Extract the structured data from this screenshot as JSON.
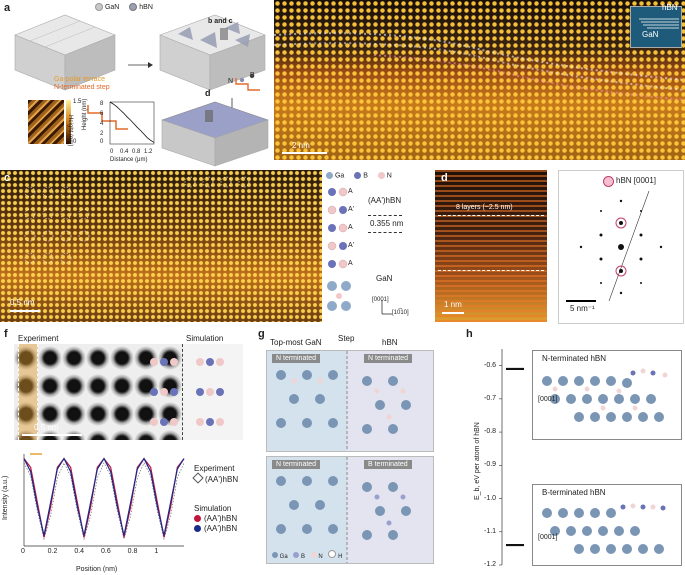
{
  "panel_labels": [
    "a",
    "b",
    "c",
    "d",
    "e",
    "f",
    "g",
    "h"
  ],
  "panel_a": {
    "legend": [
      {
        "label": "GaN",
        "color": "#c8c8c8"
      },
      {
        "label": "hBN",
        "color": "#9aa0b4"
      }
    ],
    "arrow_label_bc": "b and c",
    "arrow_label_d": "d",
    "terrace_label": "Ga-polar terrace",
    "step_label": "N-terminated step",
    "n_label": "N",
    "b_label": "B",
    "afm_scale_top": "1.5",
    "afm_scale_bottom": "0",
    "afm_scale_label": "Height (nm)",
    "profile": {
      "ylabel": "Height (nm)",
      "xlabel": "Distance (μm)",
      "yticks": [
        "0",
        "2",
        "4",
        "6",
        "8"
      ],
      "xticks": [
        "0",
        "0.4",
        "0.8",
        "1.2"
      ]
    }
  },
  "panel_b": {
    "inset_hbn": "hBN",
    "inset_gan": "GaN",
    "scale_bar": "2 nm"
  },
  "panel_c": {
    "legend": [
      "Ga",
      "B",
      "N"
    ],
    "stack_label": "(AA')hBN",
    "layer_letters": [
      "A",
      "A'",
      "A",
      "A'",
      "A"
    ],
    "spacing": "0.355 nm",
    "gan_label": "GaN",
    "axis_vertical": "[0001]",
    "axis_horizontal": "[10̅10]",
    "scale_bar": "0.5 nm"
  },
  "panel_d": {
    "layers_label": "8 layers (~2.5 nm)",
    "scale_bar": "1 nm"
  },
  "panel_e": {
    "label": "hBN [0001]",
    "scale_bar": "5 nm⁻¹"
  },
  "panel_f": {
    "experiment": "Experiment",
    "simulation": "Simulation",
    "scale_bar": "0.5 nm",
    "legend_experiment_title": "Experiment",
    "legend_experiment_item": "(AA')hBN",
    "legend_sim_title": "Simulation",
    "legend_sim_items": [
      {
        "label": "(AA')hBN",
        "color": "#c0143c"
      },
      {
        "label": "(AA')hBN",
        "color": "#1a2a8a"
      }
    ]
  },
  "panel_g": {
    "col_gan": "Top-most GaN",
    "col_step": "Step",
    "col_hbn": "hBN",
    "top_left": "N terminated",
    "top_right": "N terminated",
    "bot_left": "N terminated",
    "bot_right": "B terminated",
    "legend": [
      "Ga",
      "B",
      "N",
      "H"
    ]
  },
  "panel_h": {
    "top_label": "N-terminated hBN",
    "bottom_label": "B-terminated hBN",
    "axis_label": "[0001]",
    "ylabel": "E_b, eV per atom of hBN",
    "ytick_labels": [
      "-0.6",
      "-0.7",
      "-0.8",
      "-0.9",
      "-1.0",
      "-1.1",
      "-1.2"
    ]
  },
  "chart_data": [
    {
      "type": "line",
      "xlabel": "Distance (μm)",
      "ylabel": "Height (nm)",
      "x": [
        0,
        0.1,
        0.2,
        0.3,
        0.4,
        0.5,
        0.6,
        0.7,
        0.8,
        0.9,
        1.0,
        1.1,
        1.2,
        1.3
      ],
      "series": [
        {
          "values": [
            8,
            7.6,
            7.1,
            6.5,
            5.9,
            5.2,
            4.6,
            3.9,
            3.2,
            2.6,
            1.9,
            1.2,
            0.7,
            0.3
          ]
        }
      ],
      "xlim": [
        0,
        1.3
      ],
      "ylim": [
        0,
        8
      ]
    },
    {
      "type": "line",
      "xlabel": "Position (nm)",
      "ylabel": "Intensity (a.u.)",
      "xlim": [
        0,
        1.2
      ],
      "x": [
        0,
        0.05,
        0.1,
        0.15,
        0.2,
        0.25,
        0.3,
        0.35,
        0.4,
        0.45,
        0.5,
        0.55,
        0.6,
        0.65,
        0.7,
        0.75,
        0.8,
        0.85,
        0.9,
        0.95,
        1.0,
        1.05,
        1.1,
        1.15,
        1.2
      ],
      "series": [
        {
          "name": "(AA')hBN",
          "color": "#555555",
          "values": [
            0.95,
            0.8,
            0.4,
            0.08,
            0.35,
            0.78,
            0.95,
            0.8,
            0.4,
            0.08,
            0.35,
            0.78,
            0.95,
            0.8,
            0.4,
            0.08,
            0.35,
            0.78,
            0.95,
            0.8,
            0.4,
            0.08,
            0.35,
            0.78,
            0.95
          ]
        },
        {
          "name": "(AA')hBN",
          "color": "#c0143c",
          "values": [
            1.0,
            0.9,
            0.5,
            0.1,
            0.45,
            0.9,
            1.0,
            0.9,
            0.5,
            0.1,
            0.45,
            0.9,
            1.0,
            0.9,
            0.5,
            0.1,
            0.45,
            0.9,
            1.0,
            0.9,
            0.5,
            0.1,
            0.45,
            0.9,
            1.0
          ]
        },
        {
          "name": "(AA')hBN",
          "color": "#1a2a8a",
          "values": [
            1.0,
            0.85,
            0.45,
            0.12,
            0.5,
            0.88,
            1.0,
            0.85,
            0.45,
            0.12,
            0.5,
            0.88,
            1.0,
            0.85,
            0.45,
            0.12,
            0.5,
            0.88,
            1.0,
            0.85,
            0.45,
            0.12,
            0.5,
            0.88,
            1.0
          ]
        }
      ]
    },
    {
      "type": "scatter",
      "ylabel": "E_b, eV per atom of hBN",
      "ylim": [
        -1.2,
        -0.55
      ],
      "series": [
        {
          "name": "N-terminated hBN",
          "values": [
            -0.61
          ]
        },
        {
          "name": "B-terminated hBN",
          "values": [
            -1.14
          ]
        }
      ]
    }
  ]
}
